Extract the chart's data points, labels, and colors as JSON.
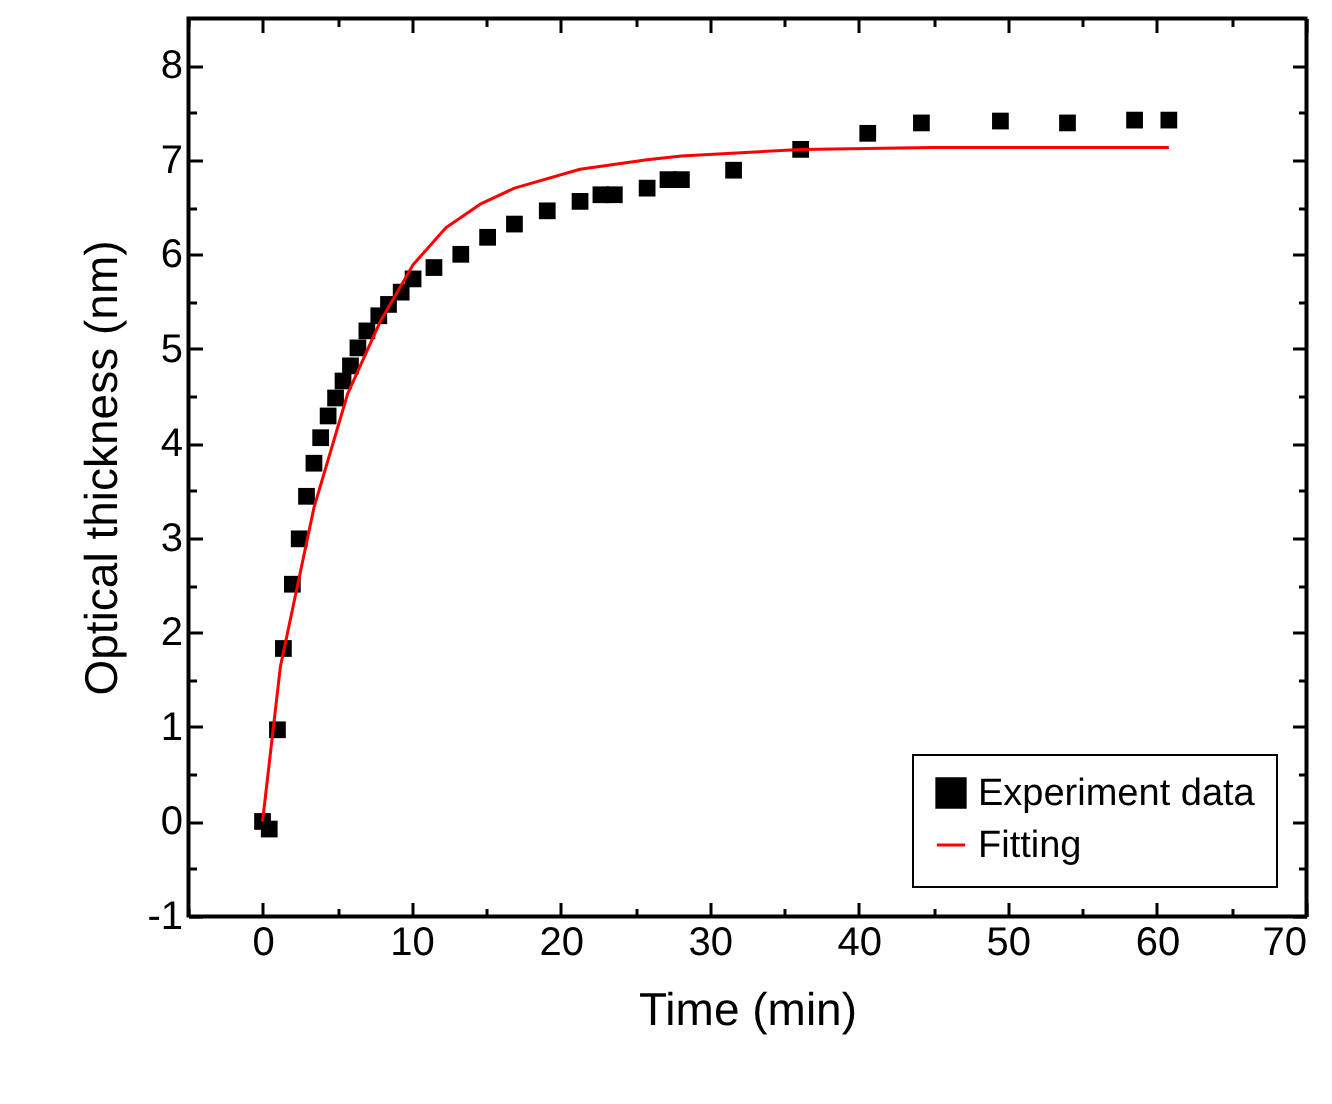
{
  "chart_data": {
    "type": "scatter",
    "xlabel": "Time (min)",
    "ylabel": "Optical thickness (nm)",
    "xlim": [
      -5,
      70
    ],
    "ylim": [
      -1,
      8.5
    ],
    "xticks": [
      {
        "value": -5,
        "label": null
      },
      0,
      {
        "value": 5,
        "label": null
      },
      10,
      {
        "value": 15,
        "label": null
      },
      20,
      {
        "value": 25,
        "label": null
      },
      30,
      {
        "value": 35,
        "label": null
      },
      40,
      {
        "value": 45,
        "label": null
      },
      50,
      {
        "value": 55,
        "label": null
      },
      60,
      {
        "value": 65,
        "label": null
      },
      70
    ],
    "yticks": [
      -1,
      {
        "value": -0.5,
        "label": null
      },
      0,
      {
        "value": 0.5,
        "label": null
      },
      1,
      {
        "value": 1.5,
        "label": null
      },
      2,
      {
        "value": 2.5,
        "label": null
      },
      3,
      {
        "value": 3.5,
        "label": null
      },
      4,
      {
        "value": 4.5,
        "label": null
      },
      5,
      {
        "value": 5.5,
        "label": null
      },
      6,
      {
        "value": 6.5,
        "label": null
      },
      7,
      {
        "value": 7.5,
        "label": null
      },
      8
    ],
    "grid": false,
    "legend": "bottom right",
    "series": [
      {
        "name": "Experiment data",
        "marker": "square",
        "color": "#000000",
        "x": [
          0,
          0.45,
          1.0,
          1.4,
          2.0,
          2.46,
          2.95,
          3.45,
          3.9,
          4.4,
          4.9,
          5.4,
          5.9,
          6.4,
          7.0,
          7.8,
          8.45,
          9.3,
          10.1,
          11.5,
          13.3,
          15.1,
          16.9,
          19.1,
          21.3,
          22.7,
          23.6,
          25.8,
          27.2,
          28.1,
          31.6,
          36.1,
          40.6,
          44.2,
          49.5,
          54.0,
          58.5,
          60.8
        ],
        "values": [
          0,
          -0.08,
          0.97,
          1.83,
          2.51,
          2.99,
          3.44,
          3.79,
          4.06,
          4.29,
          4.48,
          4.66,
          4.82,
          5.01,
          5.19,
          5.35,
          5.47,
          5.6,
          5.74,
          5.86,
          6.0,
          6.18,
          6.32,
          6.46,
          6.56,
          6.63,
          6.63,
          6.7,
          6.79,
          6.79,
          6.89,
          7.11,
          7.28,
          7.39,
          7.41,
          7.39,
          7.42,
          7.42
        ]
      },
      {
        "name": "Fitting",
        "type": "line",
        "color": "#ff0000",
        "line_style": "solid",
        "x": [
          0,
          1.2,
          3.45,
          5.7,
          7.9,
          10.1,
          12.3,
          14.6,
          16.9,
          21.3,
          25.8,
          28.1,
          36.1,
          45,
          60.8
        ],
        "values": [
          0,
          1.64,
          3.32,
          4.52,
          5.29,
          5.89,
          6.28,
          6.53,
          6.7,
          6.9,
          7.0,
          7.04,
          7.11,
          7.13,
          7.13
        ]
      }
    ]
  }
}
